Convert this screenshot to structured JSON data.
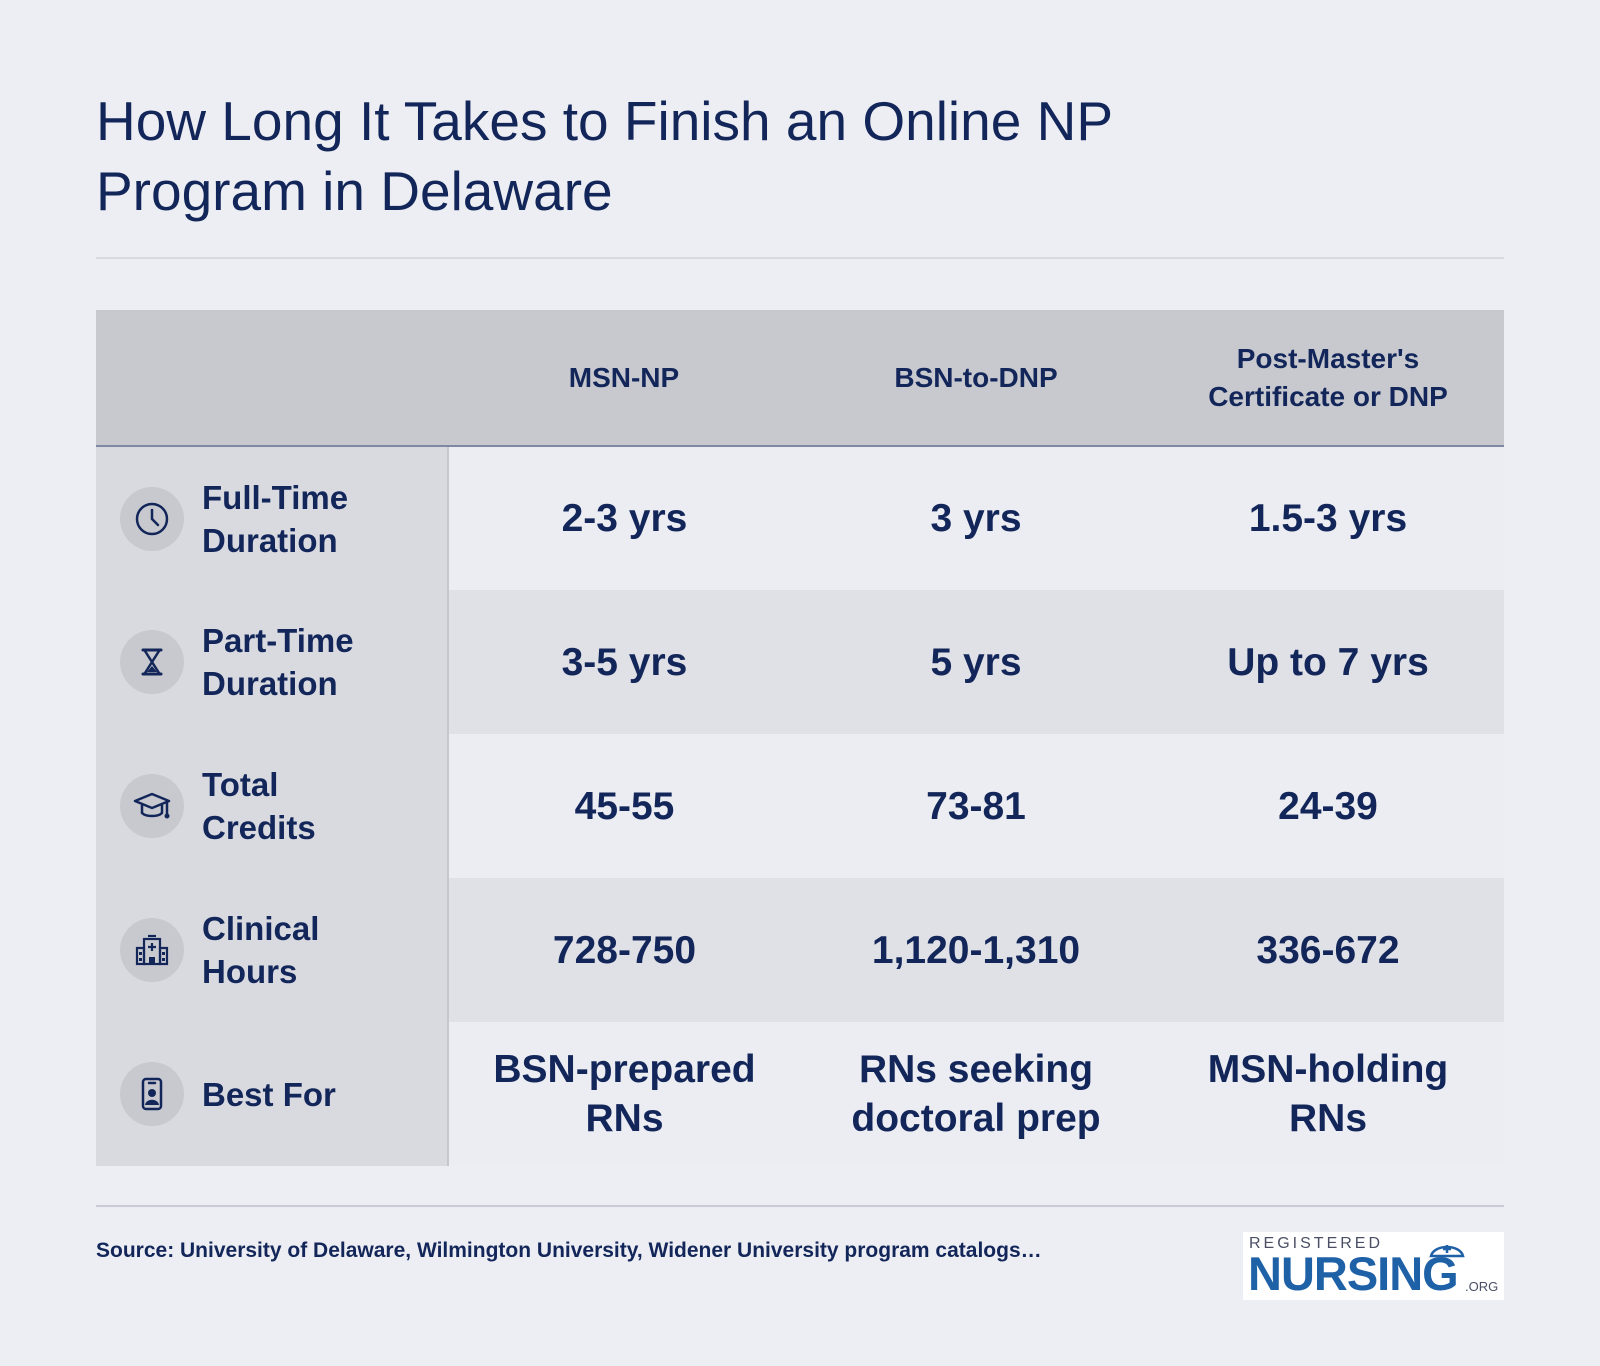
{
  "title": "How Long It Takes to Finish an Online NP Program in Delaware",
  "chart_data": {
    "type": "table",
    "columns": [
      "",
      "MSN-NP",
      "BSN-to-DNP",
      "Post-Master's Certificate or DNP"
    ],
    "rows": [
      {
        "label": "Full-Time Duration",
        "icon": "clock-icon",
        "values": [
          "2-3 yrs",
          "3 yrs",
          "1.5-3 yrs"
        ]
      },
      {
        "label": "Part-Time Duration",
        "icon": "hourglass-icon",
        "values": [
          "3-5 yrs",
          "5 yrs",
          "Up to 7 yrs"
        ]
      },
      {
        "label": "Total Credits",
        "icon": "graduation-cap-icon",
        "values": [
          "45-55",
          "73-81",
          "24-39"
        ]
      },
      {
        "label": "Clinical Hours",
        "icon": "hospital-icon",
        "values": [
          "728-750",
          "1,120-1,310",
          "336-672"
        ]
      },
      {
        "label": "Best For",
        "icon": "id-badge-icon",
        "values": [
          "BSN-prepared RNs",
          "RNs seeking doctoral prep",
          "MSN-holding RNs"
        ]
      }
    ]
  },
  "source": "Source: University of Delaware, Wilmington University, Widener University program catalogs…",
  "logo": {
    "top": "REGISTERED",
    "main": "NURSING",
    "suffix": ".ORG"
  },
  "colors": {
    "background": "#edeef3",
    "text": "#13265a",
    "header_bg": "#c8c9cf",
    "row_light": "#ecedf2",
    "row_dark": "#e0e1e7",
    "rowhead_bg": "#d9dae0",
    "logo_blue": "#1f61a7"
  }
}
